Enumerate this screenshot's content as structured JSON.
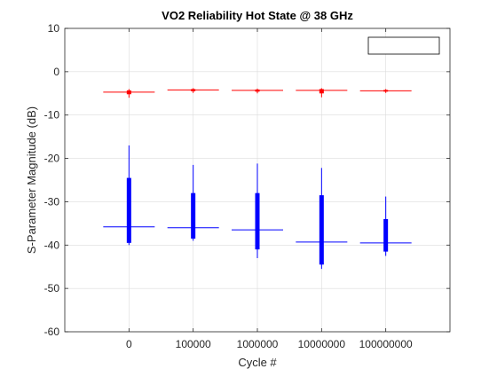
{
  "chart_data": {
    "type": "boxplot",
    "title": "VO2 Reliability Hot State @ 38 GHz",
    "xlabel": "Cycle #",
    "ylabel": "S-Parameter Magnitude (dB)",
    "categories": [
      "0",
      "100000",
      "1000000",
      "10000000",
      "100000000"
    ],
    "ylim": [
      -60,
      10
    ],
    "yticks": [
      10,
      0,
      -10,
      -20,
      -30,
      -40,
      -50,
      -60
    ],
    "grid": true,
    "legend": {
      "placement": "top-right",
      "entries": []
    },
    "series": [
      {
        "color": "#ff0000",
        "boxes": [
          {
            "min": -6.0,
            "q1": -5.2,
            "median": -4.7,
            "q3": -4.3,
            "max": -4.0
          },
          {
            "min": -4.9,
            "q1": -4.5,
            "median": -4.2,
            "q3": -4.0,
            "max": -3.8
          },
          {
            "min": -5.0,
            "q1": -4.6,
            "median": -4.3,
            "q3": -4.1,
            "max": -3.9
          },
          {
            "min": -5.9,
            "q1": -5.0,
            "median": -4.3,
            "q3": -4.0,
            "max": -3.8
          },
          {
            "min": -4.9,
            "q1": -4.6,
            "median": -4.4,
            "q3": -4.2,
            "max": -4.0
          }
        ]
      },
      {
        "color": "#0000ff",
        "boxes": [
          {
            "min": -40.0,
            "q1": -39.5,
            "median": -35.8,
            "q3": -24.5,
            "max": -17.0
          },
          {
            "min": -39.0,
            "q1": -38.5,
            "median": -36.0,
            "q3": -28.0,
            "max": -21.5
          },
          {
            "min": -43.0,
            "q1": -41.0,
            "median": -36.5,
            "q3": -28.0,
            "max": -21.2
          },
          {
            "min": -45.5,
            "q1": -44.5,
            "median": -39.3,
            "q3": -28.5,
            "max": -22.2
          },
          {
            "min": -42.5,
            "q1": -41.5,
            "median": -39.5,
            "q3": -34.0,
            "max": -28.8
          }
        ]
      }
    ]
  }
}
